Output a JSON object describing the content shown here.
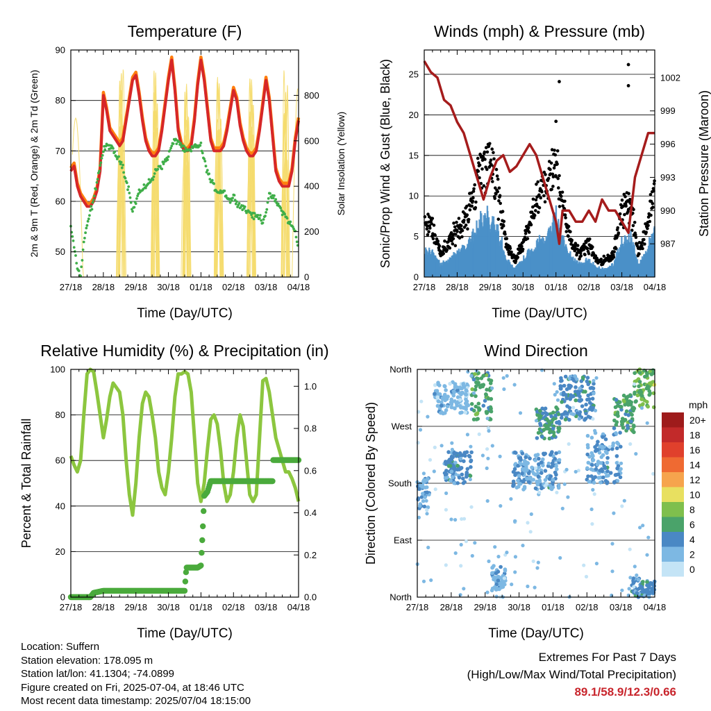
{
  "colors": {
    "temp2m": "#d62728",
    "temp9m": "#ff7f0e",
    "dewpoint": "#3fae49",
    "solar": "#f5dc6e",
    "wind": "#4a90c8",
    "gust": "#000000",
    "pressure": "#a51c1c",
    "rh": "#8cc63f",
    "precip": "#4aaa3c"
  },
  "x_tick_labels": [
    "27/18",
    "28/18",
    "29/18",
    "30/18",
    "01/18",
    "02/18",
    "03/18",
    "04/18"
  ],
  "chart_data": [
    {
      "type": "line",
      "title": "Temperature (F)",
      "xlabel": "Time (Day/UTC)",
      "ylabel": "2m & 9m T (Red, Orange) & 2m Td (Green)",
      "y2label": "Solar Insolation (Yellow)",
      "ylim": [
        45,
        90
      ],
      "yticks": [
        50,
        60,
        70,
        80,
        90
      ],
      "y2lim": [
        0,
        1000
      ],
      "y2ticks": [
        0,
        200,
        400,
        600,
        800
      ],
      "xlim": [
        0,
        7
      ],
      "grid": true,
      "series": [
        {
          "key": "temp",
          "x": [
            0,
            0.1,
            0.2,
            0.3,
            0.4,
            0.5,
            0.6,
            0.7,
            0.8,
            0.9,
            1.0,
            1.1,
            1.2,
            1.3,
            1.4,
            1.5,
            1.6,
            1.7,
            1.8,
            1.9,
            2.0,
            2.1,
            2.2,
            2.3,
            2.4,
            2.5,
            2.6,
            2.7,
            2.8,
            2.9,
            3.0,
            3.1,
            3.2,
            3.3,
            3.4,
            3.5,
            3.6,
            3.7,
            3.8,
            3.9,
            4.0,
            4.1,
            4.2,
            4.3,
            4.4,
            4.5,
            4.6,
            4.7,
            4.8,
            4.9,
            5.0,
            5.1,
            5.2,
            5.3,
            5.4,
            5.5,
            5.6,
            5.7,
            5.8,
            5.9,
            6.0,
            6.1,
            6.2,
            6.3,
            6.4,
            6.5,
            6.6,
            6.7,
            6.8,
            6.9,
            7.0
          ],
          "values": [
            66,
            67,
            63,
            61,
            60,
            59,
            59,
            60,
            62,
            66,
            81,
            78,
            74,
            73,
            72,
            71,
            72,
            76,
            80,
            84,
            85,
            81,
            76,
            72,
            70,
            69,
            69,
            70,
            74,
            79,
            84,
            88,
            82,
            74,
            71,
            70,
            70,
            71,
            76,
            83,
            88,
            84,
            78,
            72,
            70,
            70,
            70,
            71,
            74,
            78,
            82,
            80,
            75,
            72,
            70,
            69,
            69,
            70,
            74,
            79,
            84,
            80,
            73,
            66,
            64,
            63,
            63,
            63,
            66,
            72,
            76
          ]
        },
        {
          "key": "dewpoint",
          "x": [
            0,
            0.1,
            0.2,
            0.3,
            0.4,
            0.5,
            0.6,
            0.7,
            0.8,
            0.9,
            1.0,
            1.1,
            1.2,
            1.3,
            1.4,
            1.5,
            1.6,
            1.7,
            1.8,
            1.9,
            2.0,
            2.1,
            2.2,
            2.3,
            2.4,
            2.5,
            2.6,
            2.7,
            2.8,
            2.9,
            3.0,
            3.1,
            3.2,
            3.3,
            3.4,
            3.5,
            3.6,
            3.7,
            3.8,
            3.9,
            4.0,
            4.1,
            4.2,
            4.3,
            4.4,
            4.5,
            4.6,
            4.7,
            4.8,
            4.9,
            5.0,
            5.1,
            5.2,
            5.3,
            5.4,
            5.5,
            5.6,
            5.7,
            5.8,
            5.9,
            6.0,
            6.1,
            6.2,
            6.3,
            6.4,
            6.5,
            6.6,
            6.7,
            6.8,
            6.9,
            7.0
          ],
          "values": [
            55,
            51,
            47,
            45,
            52,
            55,
            58,
            60,
            64,
            67,
            70,
            71,
            71,
            70,
            69,
            68,
            67,
            64,
            62,
            58,
            60,
            62,
            62,
            63,
            64,
            64,
            66,
            67,
            67,
            68,
            69,
            71,
            72,
            72,
            71,
            70,
            70,
            70,
            71,
            71,
            71,
            68,
            66,
            64,
            63,
            62,
            62,
            62,
            61,
            60,
            61,
            60,
            59,
            59,
            58,
            58,
            57,
            57,
            57,
            56,
            58,
            61,
            61,
            60,
            59,
            58,
            57,
            56,
            55,
            54,
            50
          ]
        }
      ],
      "solar_peaks": [
        1.55,
        2.6,
        3.55,
        4.55,
        5.55,
        6.6
      ]
    },
    {
      "type": "scatter",
      "title": "Winds (mph) & Pressure (mb)",
      "xlabel": "Time (Day/UTC)",
      "ylabel": "Sonic/Prop Wind & Gust (Blue, Black)",
      "y2label": "Station Pressure (Maroon)",
      "ylim": [
        0,
        28
      ],
      "yticks": [
        0,
        5,
        10,
        15,
        20,
        25
      ],
      "y2lim": [
        984,
        1004.5
      ],
      "y2ticks": [
        987,
        990,
        993,
        996,
        999,
        1002
      ],
      "xlim": [
        0,
        7
      ],
      "grid": true,
      "wind_envelope": {
        "x": [
          0,
          0.25,
          0.5,
          0.75,
          1.0,
          1.25,
          1.5,
          1.75,
          2.0,
          2.25,
          2.5,
          2.75,
          3.0,
          3.25,
          3.5,
          3.75,
          4.0,
          4.25,
          4.5,
          4.75,
          5.0,
          5.25,
          5.5,
          5.75,
          6.0,
          6.25,
          6.5,
          6.75,
          7.0
        ],
        "gust_mean": [
          7,
          6,
          3,
          4,
          6,
          7,
          10,
          14,
          15,
          10,
          4,
          2,
          4,
          7,
          10,
          12,
          14,
          8,
          4,
          3,
          4,
          2,
          2,
          3,
          8,
          9,
          3,
          6,
          11
        ],
        "wind_mean": [
          3,
          3,
          1.5,
          2,
          3,
          3.5,
          5,
          6.5,
          7,
          5,
          2,
          1,
          2,
          3,
          4,
          5,
          7,
          4,
          2,
          1.5,
          2,
          1,
          1,
          1.5,
          4,
          5,
          1.5,
          3,
          6
        ]
      },
      "gust_outliers": [
        {
          "x": 6.2,
          "y": 26.2
        },
        {
          "x": 6.2,
          "y": 23.6
        },
        {
          "x": 4.1,
          "y": 24.1
        },
        {
          "x": 4.0,
          "y": 19.2
        }
      ],
      "pressure": {
        "x": [
          0,
          0.2,
          0.4,
          0.6,
          0.8,
          1.0,
          1.2,
          1.4,
          1.6,
          1.8,
          2.0,
          2.2,
          2.4,
          2.6,
          2.8,
          3.0,
          3.2,
          3.4,
          3.6,
          3.8,
          4.0,
          4.1,
          4.2,
          4.4,
          4.6,
          4.8,
          5.0,
          5.2,
          5.4,
          5.6,
          5.8,
          6.0,
          6.2,
          6.4,
          6.6,
          6.8,
          7.0
        ],
        "values": [
          1003.5,
          1002.5,
          1002,
          1000,
          999.5,
          998,
          997,
          995,
          993,
          991,
          993,
          994.5,
          995,
          993.5,
          994,
          995,
          996,
          995,
          993,
          991,
          989,
          987,
          990,
          990,
          989,
          989,
          990,
          989,
          991,
          990,
          990,
          989,
          988,
          993,
          995,
          997,
          997
        ]
      }
    },
    {
      "type": "line",
      "title": "Relative Humidity (%) & Precipitation (in)",
      "xlabel": "Time (Day/UTC)",
      "ylabel": "Percent & Total Rainfall",
      "ylim": [
        0,
        100
      ],
      "yticks": [
        0,
        20,
        40,
        60,
        80,
        100
      ],
      "y2lim": [
        0,
        1.08
      ],
      "y2ticks": [
        0.0,
        0.2,
        0.4,
        0.6,
        0.8,
        1.0
      ],
      "xlim": [
        0,
        7
      ],
      "grid": true,
      "series": [
        {
          "key": "rh",
          "x": [
            0,
            0.1,
            0.2,
            0.3,
            0.4,
            0.5,
            0.6,
            0.7,
            0.8,
            0.9,
            1.0,
            1.1,
            1.2,
            1.3,
            1.4,
            1.5,
            1.6,
            1.7,
            1.8,
            1.9,
            2.0,
            2.1,
            2.2,
            2.3,
            2.4,
            2.5,
            2.6,
            2.7,
            2.8,
            2.9,
            3.0,
            3.1,
            3.2,
            3.3,
            3.4,
            3.5,
            3.6,
            3.7,
            3.8,
            3.9,
            4.0,
            4.1,
            4.2,
            4.3,
            4.4,
            4.5,
            4.6,
            4.7,
            4.8,
            4.9,
            5.0,
            5.1,
            5.2,
            5.3,
            5.4,
            5.5,
            5.6,
            5.7,
            5.8,
            5.9,
            6.0,
            6.1,
            6.2,
            6.3,
            6.4,
            6.5,
            6.6,
            6.7,
            6.8,
            6.9,
            7.0
          ],
          "values": [
            62,
            58,
            55,
            60,
            80,
            98,
            100,
            99,
            90,
            80,
            70,
            78,
            88,
            94,
            92,
            90,
            80,
            60,
            45,
            36,
            50,
            70,
            85,
            90,
            88,
            80,
            70,
            55,
            48,
            45,
            55,
            70,
            88,
            98,
            98,
            99,
            98,
            90,
            70,
            50,
            42,
            50,
            65,
            78,
            80,
            76,
            65,
            50,
            42,
            45,
            55,
            70,
            80,
            75,
            60,
            45,
            42,
            45,
            70,
            95,
            96,
            90,
            80,
            70,
            65,
            60,
            55,
            55,
            52,
            48,
            42
          ]
        },
        {
          "key": "precip",
          "x": [
            0,
            0.6,
            0.7,
            1.0,
            2.0,
            3.0,
            3.5,
            3.55,
            3.9,
            4.0,
            4.05,
            4.1,
            4.2,
            4.3,
            4.5,
            5.0,
            5.5,
            5.7,
            5.75,
            6.0,
            6.2,
            6.21,
            6.5,
            7.0
          ],
          "values": [
            0,
            0,
            0.02,
            0.03,
            0.03,
            0.03,
            0.03,
            0.14,
            0.14,
            0.15,
            0.3,
            0.48,
            0.5,
            0.55,
            0.55,
            0.55,
            0.55,
            0.55,
            0.55,
            0.55,
            0.55,
            0.65,
            0.65,
            0.65
          ]
        }
      ]
    },
    {
      "type": "scatter",
      "title": "Wind Direction",
      "xlabel": "Time (Day/UTC)",
      "ylabel": "Direction (Colored By Speed)",
      "ylim": [
        0,
        360
      ],
      "yticks": [
        0,
        90,
        180,
        270,
        360
      ],
      "ytick_labels": [
        "North",
        "East",
        "South",
        "West",
        "North"
      ],
      "xlim": [
        0,
        7
      ],
      "grid": true,
      "legend_title": "mph",
      "legend_labels": [
        "20+",
        "18",
        "16",
        "14",
        "12",
        "10",
        "8",
        "6",
        "4",
        "2",
        "0"
      ],
      "legend_colors": [
        "#9e1b1b",
        "#c22a2a",
        "#e0402c",
        "#ef6a32",
        "#f6a44d",
        "#e8e060",
        "#7fbf4d",
        "#4aa36a",
        "#4a88c4",
        "#7db8e3",
        "#c4e4f6"
      ],
      "clusters": [
        {
          "x0": 0.0,
          "x1": 0.35,
          "dir0": 140,
          "dir1": 190,
          "speed": 3
        },
        {
          "x0": 0.5,
          "x1": 1.5,
          "dir0": 290,
          "dir1": 340,
          "speed": 2
        },
        {
          "x0": 0.8,
          "x1": 1.6,
          "dir0": 180,
          "dir1": 230,
          "speed": 4
        },
        {
          "x0": 1.6,
          "x1": 2.2,
          "dir0": 280,
          "dir1": 355,
          "speed": 6
        },
        {
          "x0": 2.2,
          "x1": 2.6,
          "dir0": 10,
          "dir1": 50,
          "speed": 2
        },
        {
          "x0": 2.8,
          "x1": 4.2,
          "dir0": 170,
          "dir1": 230,
          "speed": 3
        },
        {
          "x0": 3.5,
          "x1": 4.2,
          "dir0": 250,
          "dir1": 300,
          "speed": 5
        },
        {
          "x0": 4.2,
          "x1": 5.2,
          "dir0": 280,
          "dir1": 350,
          "speed": 4
        },
        {
          "x0": 5.0,
          "x1": 6.0,
          "dir0": 180,
          "dir1": 260,
          "speed": 3
        },
        {
          "x0": 5.8,
          "x1": 6.4,
          "dir0": 260,
          "dir1": 320,
          "speed": 6
        },
        {
          "x0": 6.4,
          "x1": 7.0,
          "dir0": 300,
          "dir1": 360,
          "speed": 7
        },
        {
          "x0": 6.3,
          "x1": 7.0,
          "dir0": 0,
          "dir1": 30,
          "speed": 4
        }
      ]
    }
  ],
  "info": {
    "location": "Location: Suffern",
    "elevation": "Station elevation: 178.095 m",
    "latlon": "Station lat/lon: 41.1304; -74.0899",
    "created": "Figure created on Fri, 2025-07-04, at 18:46 UTC",
    "recent": "Most recent data timestamp: 2025/07/04 18:15:00"
  },
  "extremes": {
    "title": "Extremes For Past 7 Days",
    "subtitle": "(High/Low/Max Wind/Total Precipitation)",
    "values": "89.1/58.9/12.3/0.66"
  }
}
